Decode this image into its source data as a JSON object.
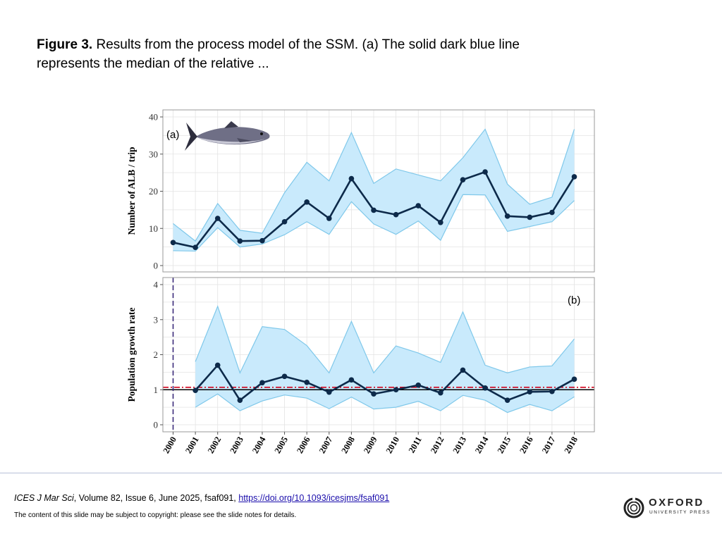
{
  "caption": {
    "label": "Figure 3.",
    "text": " Results from the process model of the SSM. (a) The solid dark blue line represents the median of the relative ..."
  },
  "colors": {
    "band_fill": "#c9eafc",
    "band_line": "#7fc8ea",
    "median_line": "#0d2a4a",
    "ref_red": "#d0021b",
    "ref_black": "#000000",
    "vline": "#3a2a7a",
    "grid": "#e3e3e3"
  },
  "icons": {
    "fish": "tuna-illustration-icon",
    "logo": "oxford-logo-icon"
  },
  "chart_data": [
    {
      "type": "line",
      "panel_label": "(a)",
      "ylabel": "Number of ALB / trip",
      "x": [
        2000,
        2001,
        2002,
        2003,
        2004,
        2005,
        2006,
        2007,
        2008,
        2009,
        2010,
        2011,
        2012,
        2013,
        2014,
        2015,
        2016,
        2017,
        2018
      ],
      "ylim": [
        0,
        40
      ],
      "yticks": [
        0,
        10,
        20,
        30,
        40
      ],
      "grid": true,
      "series": [
        {
          "values": [
            6.2,
            4.9,
            12.7,
            6.6,
            6.7,
            11.8,
            17.1,
            12.7,
            23.4,
            14.9,
            13.7,
            16.1,
            11.6,
            23.1,
            25.2,
            13.3,
            13.0,
            14.3,
            23.9
          ]
        }
      ],
      "lower": [
        4.0,
        3.9,
        10.2,
        5.0,
        5.8,
        8.3,
        11.8,
        8.4,
        17.2,
        11.2,
        8.4,
        12.0,
        6.8,
        19.1,
        19.0,
        9.2,
        10.5,
        11.8,
        17.5
      ],
      "upper": [
        11.3,
        6.6,
        16.7,
        9.5,
        8.7,
        19.6,
        27.8,
        22.8,
        35.8,
        22.1,
        26.0,
        24.4,
        22.8,
        29.0,
        36.7,
        21.9,
        16.5,
        18.4,
        36.7
      ]
    },
    {
      "type": "line",
      "panel_label": "(b)",
      "ylabel": "Population growth rate",
      "x": [
        2001,
        2002,
        2003,
        2004,
        2005,
        2006,
        2007,
        2008,
        2009,
        2010,
        2011,
        2012,
        2013,
        2014,
        2015,
        2016,
        2017,
        2018
      ],
      "ylim": [
        0,
        4
      ],
      "yticks": [
        0,
        1,
        2,
        3,
        4
      ],
      "grid": true,
      "series": [
        {
          "values": [
            0.98,
            1.7,
            0.7,
            1.2,
            1.38,
            1.21,
            0.93,
            1.28,
            0.88,
            1.0,
            1.13,
            0.91,
            1.56,
            1.05,
            0.7,
            0.94,
            0.95,
            1.3
          ]
        }
      ],
      "lower": [
        0.5,
        0.88,
        0.4,
        0.68,
        0.85,
        0.76,
        0.46,
        0.79,
        0.45,
        0.5,
        0.67,
        0.4,
        0.84,
        0.7,
        0.35,
        0.58,
        0.4,
        0.8
      ],
      "upper": [
        1.8,
        3.38,
        1.48,
        2.8,
        2.72,
        2.26,
        1.48,
        2.95,
        1.48,
        2.25,
        2.05,
        1.78,
        3.22,
        1.7,
        1.48,
        1.65,
        1.68,
        2.45
      ],
      "reference_lines": [
        1.0,
        1.07
      ],
      "vertical_line_x": 2000
    }
  ],
  "footer": {
    "journal": "ICES J Mar Sci",
    "citation_rest": ", Volume 82, Issue 6, June 2025, fsaf091, ",
    "doi_text": "https://doi.org/10.1093/icesjms/fsaf091",
    "copyright": "The content of this slide may be subject to copyright: please see the slide notes for details.",
    "publisher_name": "OXFORD",
    "publisher_sub": "UNIVERSITY PRESS"
  }
}
